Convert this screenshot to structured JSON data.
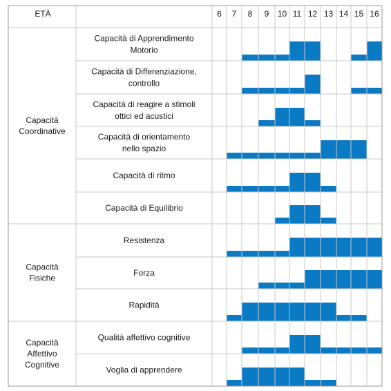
{
  "header": {
    "age_label": "ETÀ"
  },
  "colors": {
    "bar": "#0a7ac4",
    "grid": "#c8c8c8",
    "border": "#9a9a9a"
  },
  "chart_data": {
    "type": "table",
    "ages": [
      6,
      7,
      8,
      9,
      10,
      11,
      12,
      13,
      14,
      15,
      16
    ],
    "groups": [
      {
        "name": [
          "Capacità",
          "Coordinative"
        ],
        "rows": [
          {
            "label": [
              "Capacità di Apprendimento",
              "Motorio"
            ],
            "levels": {
              "6": 0,
              "7": 0,
              "8": 1,
              "9": 1,
              "10": 1,
              "11": 2,
              "12": 2,
              "13": 0,
              "14": 0,
              "15": 1,
              "16": 2
            }
          },
          {
            "label": [
              "Capacità di Differenziazione,",
              "controllo"
            ],
            "levels": {
              "6": 0,
              "7": 0,
              "8": 1,
              "9": 1,
              "10": 1,
              "11": 1,
              "12": 2,
              "13": 0,
              "14": 0,
              "15": 1,
              "16": 1
            }
          },
          {
            "label": [
              "Capacità di reagire a stimoli",
              "ottici ed acustici"
            ],
            "levels": {
              "6": 0,
              "7": 0,
              "8": 0,
              "9": 1,
              "10": 2,
              "11": 2,
              "12": 1,
              "13": 0,
              "14": 0,
              "15": 0,
              "16": 0
            }
          },
          {
            "label": [
              "Capacità di orientamento",
              "nello spazio"
            ],
            "levels": {
              "6": 0,
              "7": 1,
              "8": 1,
              "9": 1,
              "10": 1,
              "11": 1,
              "12": 1,
              "13": 2,
              "14": 2,
              "15": 2,
              "16": 0
            }
          },
          {
            "label": [
              "Capacità di ritmo"
            ],
            "levels": {
              "6": 0,
              "7": 1,
              "8": 1,
              "9": 1,
              "10": 1,
              "11": 2,
              "12": 2,
              "13": 1,
              "14": 0,
              "15": 0,
              "16": 0
            }
          },
          {
            "label": [
              "Capacità di Equilibrio"
            ],
            "levels": {
              "6": 0,
              "7": 0,
              "8": 0,
              "9": 0,
              "10": 1,
              "11": 2,
              "12": 2,
              "13": 1,
              "14": 0,
              "15": 0,
              "16": 0
            }
          }
        ]
      },
      {
        "name": [
          "Capacità",
          "Fisiche"
        ],
        "rows": [
          {
            "label": [
              "Resistenza"
            ],
            "levels": {
              "6": 0,
              "7": 1,
              "8": 1,
              "9": 1,
              "10": 1,
              "11": 2,
              "12": 2,
              "13": 2,
              "14": 2,
              "15": 2,
              "16": 2
            }
          },
          {
            "label": [
              "Forza"
            ],
            "levels": {
              "6": 0,
              "7": 0,
              "8": 0,
              "9": 1,
              "10": 1,
              "11": 1,
              "12": 2,
              "13": 2,
              "14": 2,
              "15": 2,
              "16": 2
            }
          },
          {
            "label": [
              "Rapidità"
            ],
            "levels": {
              "6": 0,
              "7": 1,
              "8": 2,
              "9": 2,
              "10": 2,
              "11": 2,
              "12": 2,
              "13": 2,
              "14": 1,
              "15": 1,
              "16": 0
            }
          }
        ]
      },
      {
        "name": [
          "Capacità",
          "Affettivo",
          "Cognitive"
        ],
        "rows": [
          {
            "label": [
              "Qualità affettivo cognitive"
            ],
            "levels": {
              "6": 0,
              "7": 0,
              "8": 1,
              "9": 1,
              "10": 1,
              "11": 2,
              "12": 2,
              "13": 1,
              "14": 1,
              "15": 1,
              "16": 1
            }
          },
          {
            "label": [
              "Voglia di apprendere"
            ],
            "levels": {
              "6": 0,
              "7": 1,
              "8": 2,
              "9": 2,
              "10": 2,
              "11": 2,
              "12": 1,
              "13": 1,
              "14": 0,
              "15": 0,
              "16": 0
            }
          }
        ]
      }
    ]
  }
}
